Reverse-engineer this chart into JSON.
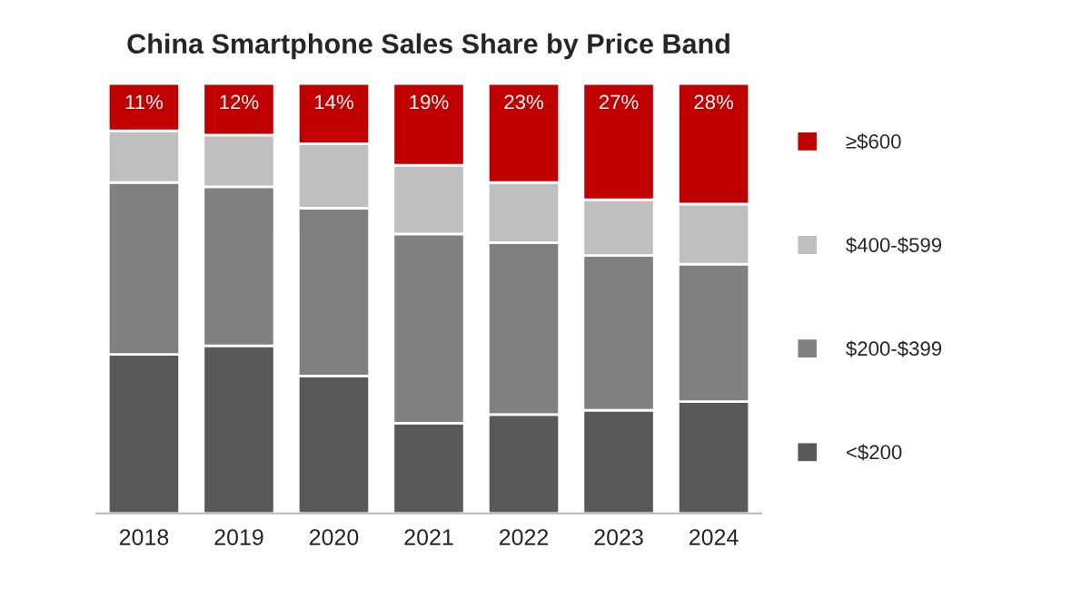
{
  "chart_data": {
    "type": "bar",
    "title": "China Smartphone Sales Share by Price Band",
    "categories": [
      "2018",
      "2019",
      "2020",
      "2021",
      "2022",
      "2023",
      "2024"
    ],
    "stacked": true,
    "legend": "right",
    "series": [
      {
        "name": "<$200",
        "color": "#595959",
        "values": [
          37,
          39,
          32,
          21,
          23,
          24,
          26
        ]
      },
      {
        "name": "$200-$399",
        "color": "#808080",
        "values": [
          40,
          37,
          39,
          44,
          40,
          36,
          32
        ]
      },
      {
        "name": "$400-$599",
        "color": "#bfbfbf",
        "values": [
          12,
          12,
          15,
          16,
          14,
          13,
          14
        ]
      },
      {
        "name": "≥$600",
        "color": "#c00000",
        "values": [
          11,
          12,
          14,
          19,
          23,
          27,
          28
        ],
        "value_labels": [
          "11%",
          "12%",
          "14%",
          "19%",
          "23%",
          "27%",
          "28%"
        ]
      }
    ]
  }
}
